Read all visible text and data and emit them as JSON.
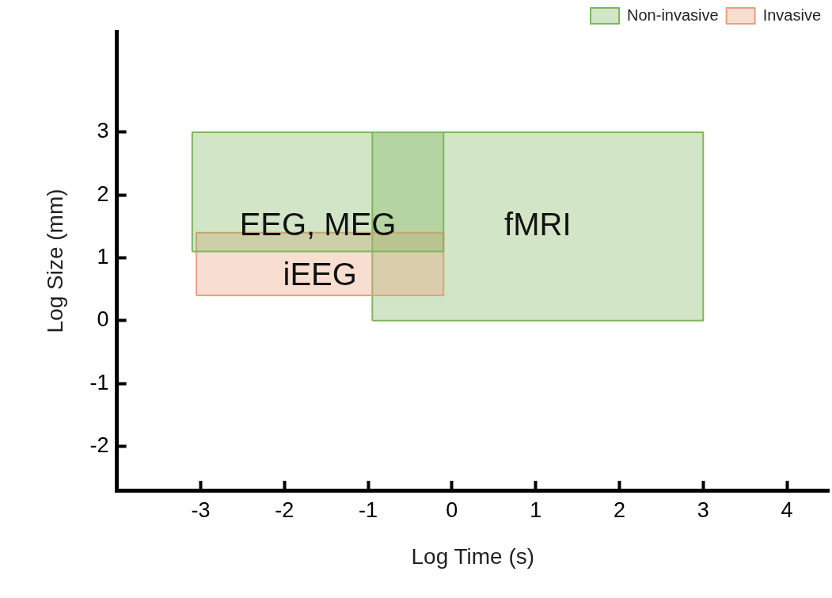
{
  "chart_data": {
    "type": "area",
    "xlabel": "Log Time (s)",
    "ylabel": "Log Size (mm)",
    "xlim": [
      -4,
      4.5
    ],
    "ylim": [
      -2.7,
      4.6
    ],
    "xticks": [
      -3,
      -2,
      -1,
      0,
      1,
      2,
      3,
      4
    ],
    "yticks": [
      -2,
      -1,
      0,
      1,
      2,
      3
    ],
    "grid": false,
    "legend": "top right",
    "series": [
      {
        "name": "Non-invasive",
        "color": "#7fb55e",
        "x": [
          -3.1,
          -3.1,
          -0.1,
          -0.1,
          -3.1
        ],
        "values": [
          1.1,
          3,
          3,
          1.1,
          1.1
        ]
      },
      {
        "name": "Invasive",
        "color": "#e8a07a",
        "x": [
          -3.05,
          -3.05,
          -0.1,
          -0.1,
          -3.05
        ],
        "values": [
          0.4,
          1.4,
          1.4,
          0.4,
          0.4
        ]
      },
      {
        "color": "#7fb55e",
        "x": [
          -0.95,
          -0.95,
          3,
          3,
          -0.95
        ],
        "values": [
          0,
          3,
          3,
          0,
          0
        ]
      }
    ],
    "annotations": [
      "EEG, MEG",
      "iEEG",
      "fMRI"
    ]
  }
}
